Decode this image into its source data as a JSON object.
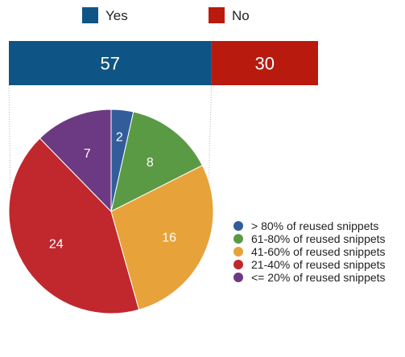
{
  "chart_data": [
    {
      "type": "bar",
      "orientation": "horizontal-stacked",
      "series": [
        {
          "name": "Yes",
          "value": 57,
          "color": "#0e5585"
        },
        {
          "name": "No",
          "value": 30,
          "color": "#b81a0e"
        }
      ],
      "legend_placement": "top"
    },
    {
      "type": "pie",
      "slices": [
        {
          "label": "> 80% of reused snippets",
          "value": 2,
          "color": "#335c9a"
        },
        {
          "label": "61-80% of reused snippets",
          "value": 8,
          "color": "#5b9a45"
        },
        {
          "label": "41-60% of reused snippets",
          "value": 16,
          "color": "#e7a23a"
        },
        {
          "label": "21-40% of reused snippets",
          "value": 24,
          "color": "#c0282e"
        },
        {
          "label": "<= 20% of reused snippets",
          "value": 7,
          "color": "#6b3a83"
        }
      ],
      "legend_placement": "right"
    }
  ]
}
